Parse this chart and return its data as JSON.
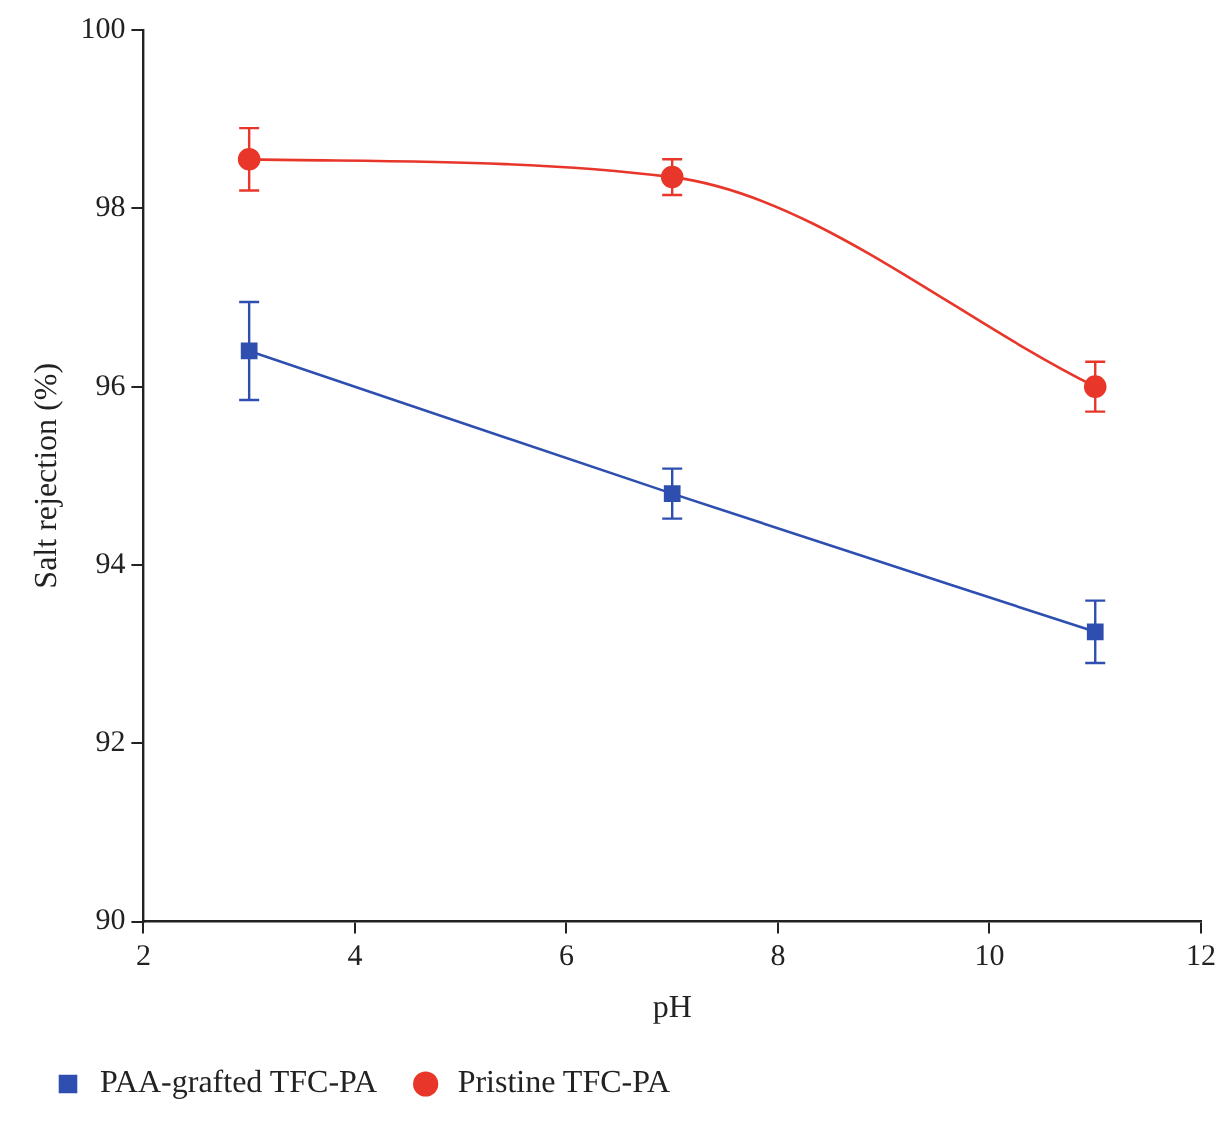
{
  "chart_data": {
    "type": "line",
    "xlabel": "pH",
    "ylabel": "Salt rejection (%)",
    "x": [
      3,
      7,
      11
    ],
    "series": [
      {
        "name": "PAA-grafted TFC-PA",
        "color": "#2f4fb0",
        "marker": "square",
        "values": [
          96.4,
          94.8,
          93.25
        ],
        "errors": [
          0.55,
          0.28,
          0.35
        ]
      },
      {
        "name": "Pristine TFC-PA",
        "color": "#e8372a",
        "marker": "circle",
        "values": [
          98.55,
          98.35,
          96.0
        ],
        "errors": [
          0.35,
          0.2,
          0.28
        ]
      }
    ],
    "xlim": [
      2,
      12
    ],
    "xticks": [
      2,
      4,
      6,
      8,
      10,
      12
    ],
    "ylim": [
      90,
      100
    ],
    "yticks": [
      90,
      92,
      94,
      96,
      98,
      100
    ],
    "grid": false,
    "legend": "bottom left",
    "line_style": "solid"
  }
}
